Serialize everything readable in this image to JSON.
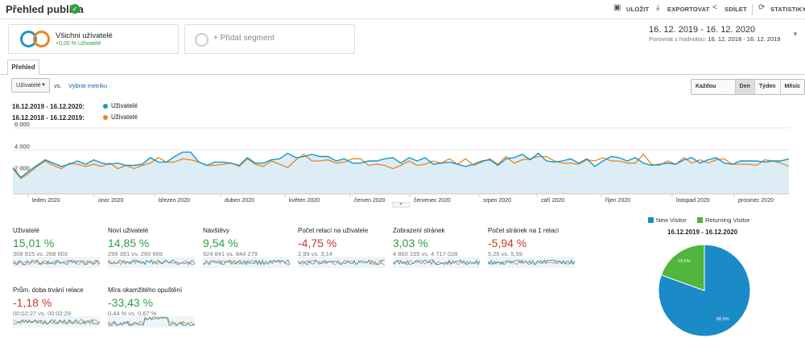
{
  "header": {
    "title": "Přehled publika",
    "save": "ULOŽIT",
    "export": "EXPORTOVAT",
    "share": "SDÍLET",
    "insights": "STATISTIKY"
  },
  "segments": {
    "active_name": "Všichni uživatelé",
    "active_sub": "+0,00 % Uživatelé",
    "add_label": "+ Přidat segment"
  },
  "daterange": {
    "range": "16. 12. 2019 - 16. 12. 2020",
    "compare_label": "Porovnat s hodnotou:",
    "compare_range": "16. 12. 2018 - 16. 12. 2019"
  },
  "tabs": {
    "overview": "Přehled"
  },
  "controls": {
    "metric": "Uživatelé",
    "vs": "vs.",
    "pick_metric": "Vybrat metriku",
    "granularity": [
      "Každou hodinu",
      "Den",
      "Týden",
      "Měsíc"
    ],
    "active_granularity": "Den"
  },
  "legend": [
    {
      "period": "16.12.2019 - 16.12.2020:",
      "series": "Uživatelé",
      "color": "#1b96c4"
    },
    {
      "period": "16.12.2018 - 16.12.2019:",
      "series": "Uživatelé",
      "color": "#e8861e"
    }
  ],
  "chart_data": {
    "type": "line",
    "y_ticks": [
      "6 000",
      "4 000",
      "2 000"
    ],
    "ylim": [
      0,
      6000
    ],
    "x_labels": [
      "leden 2020",
      "únor 2020",
      "březen 2020",
      "duben 2020",
      "květen 2020",
      "červen 2020",
      "červenec 2020",
      "srpen 2020",
      "září 2020",
      "říjen 2020",
      "listopad 2020",
      "prosinec 2020"
    ],
    "series": [
      {
        "name": "Uživatelé",
        "period": "16.12.2019 - 16.12.2020",
        "color": "#1b96c4",
        "values": [
          2400,
          1500,
          2100,
          2600,
          3100,
          2800,
          2500,
          2700,
          3000,
          2700,
          3100,
          2800,
          2700,
          2800,
          2600,
          2600,
          2700,
          3300,
          2900,
          2900,
          3400,
          3800,
          3800,
          2900,
          2600,
          2900,
          2900,
          2800,
          2600,
          3300,
          2800,
          2800,
          3100,
          3200,
          3700,
          3300,
          3400,
          3600,
          3400,
          3400,
          3000,
          3200,
          2800,
          2800,
          3000,
          3000,
          3200,
          3300,
          2800,
          3300,
          3000,
          3300,
          2700,
          2800,
          2900,
          2700,
          2500,
          2700,
          3000,
          3100,
          2600,
          3200,
          3300,
          3600,
          3100,
          3700,
          3000,
          2900,
          3000,
          3200,
          2800,
          3200,
          2500,
          3000,
          3400,
          3300,
          3000,
          3300,
          2800,
          2600,
          2700,
          2800,
          2700,
          3100,
          3300,
          2800,
          3100,
          3300,
          2800,
          2700,
          3000,
          3000,
          3000,
          2900,
          3000,
          3000,
          3200
        ]
      },
      {
        "name": "Uživatelé",
        "period": "16.12.2018 - 16.12.2019",
        "color": "#e8861e",
        "values": [
          2300,
          1400,
          1900,
          2500,
          3000,
          2600,
          2300,
          2800,
          2700,
          2500,
          2700,
          2500,
          2800,
          2300,
          2600,
          2300,
          2600,
          2800,
          3300,
          2900,
          2900,
          3200,
          3100,
          2900,
          2600,
          2600,
          2700,
          2800,
          2500,
          3200,
          2700,
          2500,
          3000,
          2700,
          2400,
          3100,
          3600,
          3000,
          3000,
          3100,
          2800,
          2900,
          3200,
          3200,
          2600,
          2700,
          2600,
          2300,
          2600,
          3000,
          2600,
          2700,
          3000,
          2800,
          3200,
          2700,
          3200,
          2600,
          2900,
          3200,
          2700,
          3400,
          2800,
          3100,
          3200,
          3400,
          3400,
          3000,
          2800,
          2800,
          2700,
          3100,
          3000,
          3300,
          3000,
          3000,
          2800,
          2800,
          3600,
          2700,
          2600,
          3000,
          2700,
          3300,
          2800,
          3100,
          2800,
          3100,
          3200,
          2700,
          2700,
          2700,
          2600,
          3100,
          3000,
          2800,
          2500
        ]
      }
    ]
  },
  "metrics": [
    {
      "name": "Uživatelé",
      "value": "15,01 %",
      "cmp": "308 915 vs. 268 603",
      "good": true
    },
    {
      "name": "Noví uživatelé",
      "value": "14,85 %",
      "cmp": "299 391 vs. 260 669",
      "good": true
    },
    {
      "name": "Návštěvy",
      "value": "9,54 %",
      "cmp": "924 841 vs. 844 279",
      "good": true
    },
    {
      "name": "Počet relací na uživatele",
      "value": "-4,75 %",
      "cmp": "2,99 vs. 3,14",
      "good": false
    },
    {
      "name": "Zobrazení stránek",
      "value": "3,03 %",
      "cmp": "4 860 155 vs. 4 717 028",
      "good": true
    },
    {
      "name": "Počet stránek na 1 relaci",
      "value": "-5,94 %",
      "cmp": "5,26 vs. 5,59",
      "good": false
    },
    {
      "name": "Prům. doba trvání relace",
      "value": "-1,18 %",
      "cmp": "00:02:27 vs. 00:02:29",
      "good": false
    },
    {
      "name": "Míra okamžitého opuštění",
      "value": "-33,43 %",
      "cmp": "0,44 % vs. 0,67 %",
      "good": true
    }
  ],
  "pie": {
    "legend": [
      {
        "label": "New Visitor",
        "color": "#1b8bc8"
      },
      {
        "label": "Returning Visitor",
        "color": "#4fb53b"
      }
    ],
    "title": "16.12.2019 - 16.12.2020",
    "slices": [
      {
        "label": "New Visitor",
        "value": 80.5,
        "text": "80,5%",
        "color": "#1b8bc8"
      },
      {
        "label": "Returning Visitor",
        "value": 19.5,
        "text": "19,5%",
        "color": "#4fb53b"
      }
    ]
  },
  "colors": {
    "good": "#2e9e44",
    "bad": "#c53929"
  }
}
